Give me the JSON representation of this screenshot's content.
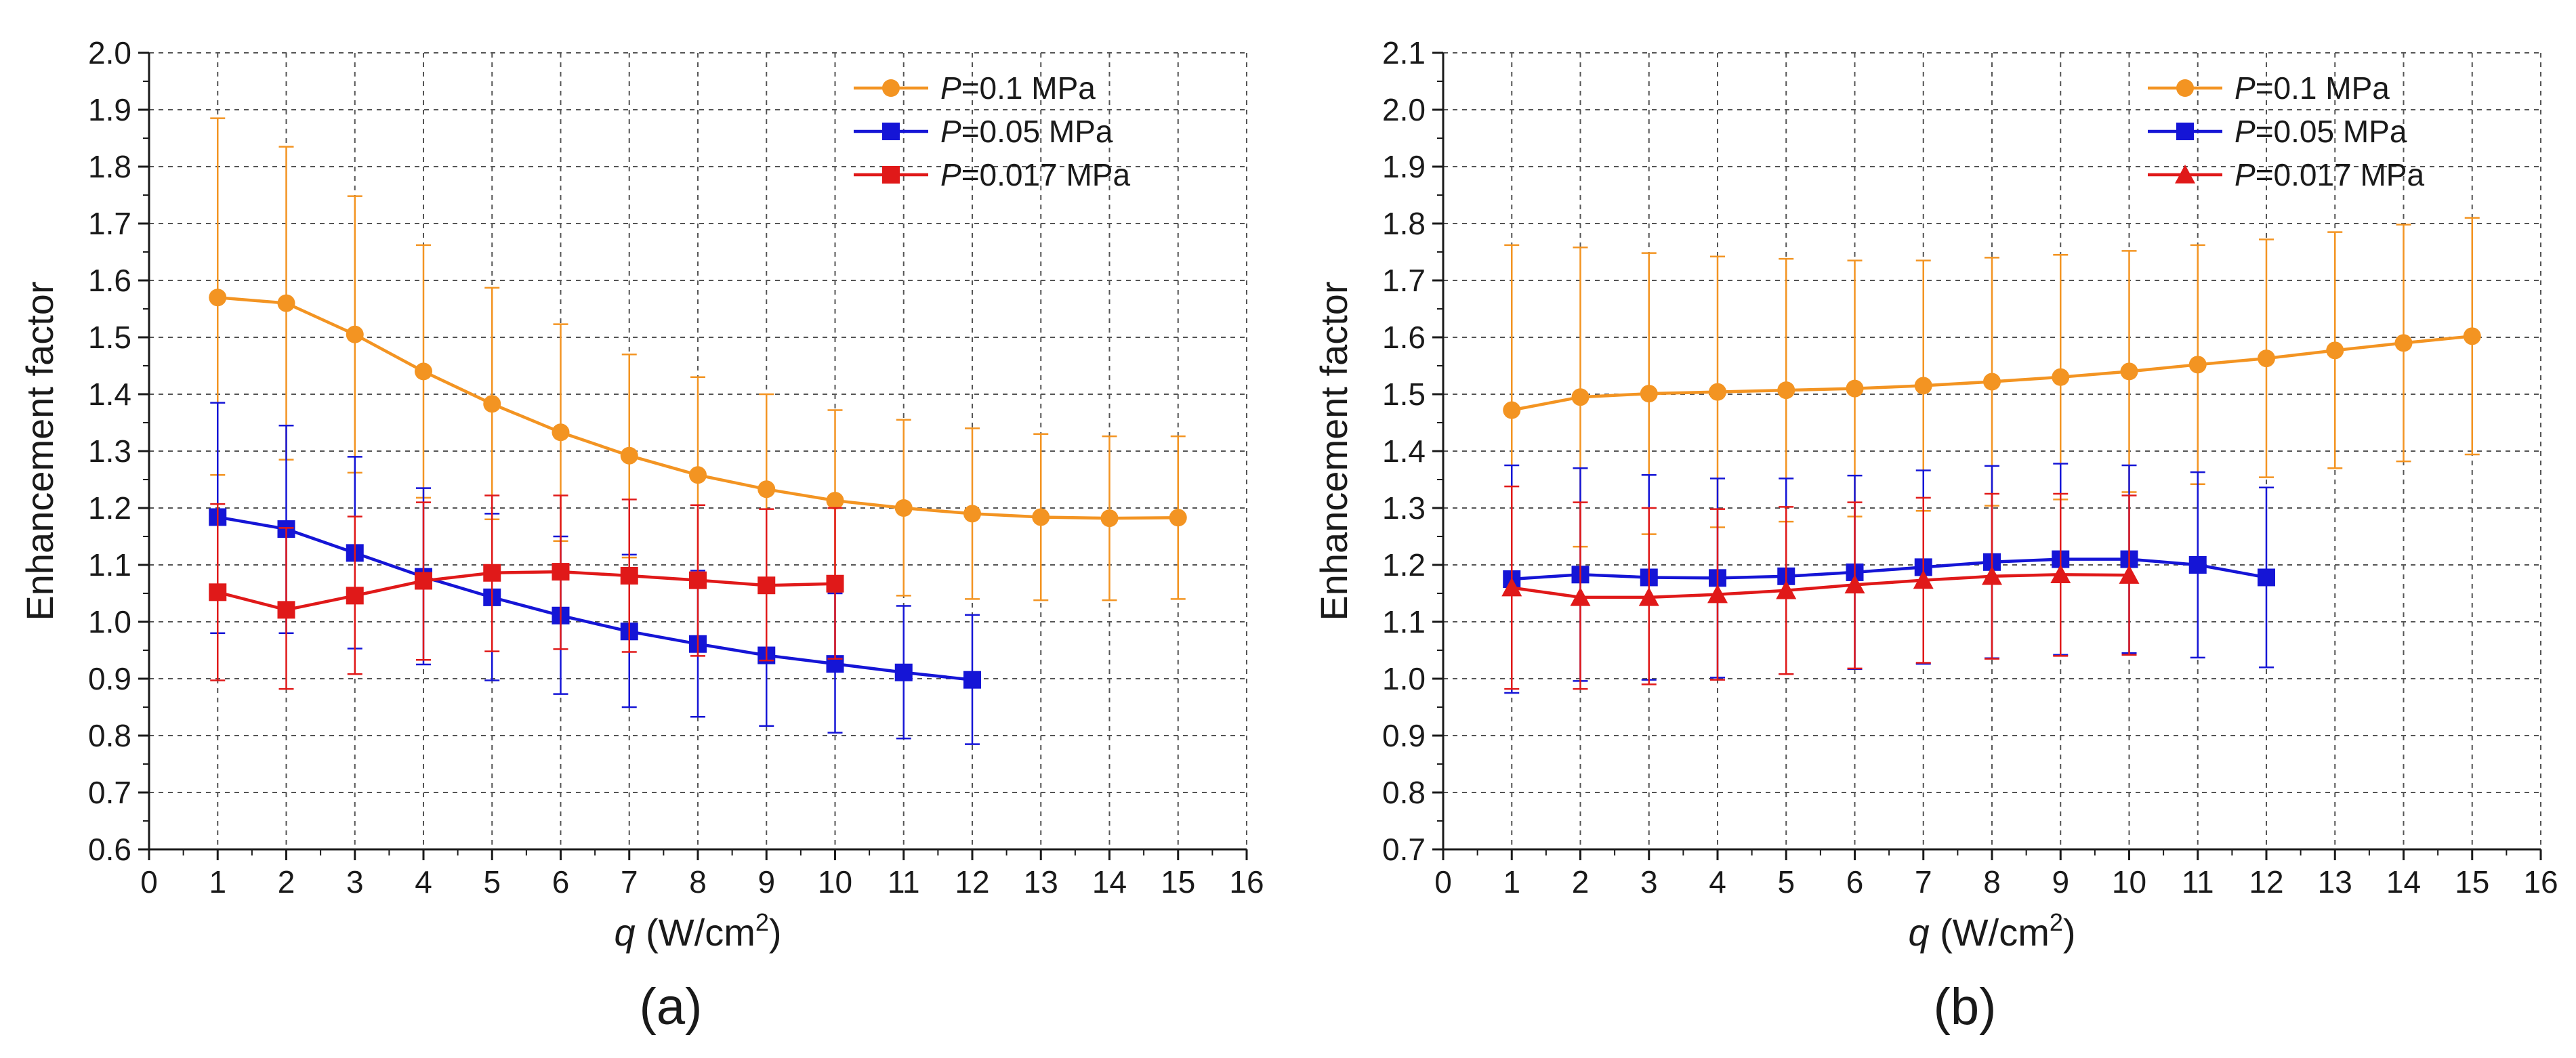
{
  "chart_data": [
    {
      "type": "line",
      "panel_label": "(a)",
      "title": "",
      "xlabel": {
        "italic": "q",
        "rest": " (W/cm",
        "sup": "2",
        "close": ")"
      },
      "ylabel": "Enhancement factor",
      "xlim": [
        0,
        16
      ],
      "ylim": [
        0.6,
        2.0
      ],
      "x_ticks": [
        0,
        1,
        2,
        3,
        4,
        5,
        6,
        7,
        8,
        9,
        10,
        11,
        12,
        13,
        14,
        15,
        16
      ],
      "y_ticks": [
        "0.6",
        "0.7",
        "0.8",
        "0.9",
        "1.0",
        "1.1",
        "1.2",
        "1.3",
        "1.4",
        "1.5",
        "1.6",
        "1.7",
        "1.8",
        "1.9",
        "2.0"
      ],
      "grid": true,
      "legend_position": "top-right",
      "series": [
        {
          "name": "P=0.1 MPa",
          "legend_italic": "P",
          "legend_rest": "=0.1 MPa",
          "color": "#f39422",
          "marker": "circle",
          "x": [
            1,
            2,
            3,
            4,
            5,
            6,
            7,
            8,
            9,
            10,
            11,
            12,
            13,
            14,
            15
          ],
          "y": [
            1.57,
            1.56,
            1.505,
            1.44,
            1.383,
            1.333,
            1.292,
            1.258,
            1.233,
            1.213,
            1.2,
            1.19,
            1.184,
            1.182,
            1.183
          ],
          "err_upper": [
            1.885,
            1.835,
            1.748,
            1.662,
            1.587,
            1.523,
            1.47,
            1.43,
            1.4,
            1.372,
            1.355,
            1.34,
            1.33,
            1.326,
            1.326
          ],
          "err_lower": [
            1.258,
            1.285,
            1.262,
            1.218,
            1.18,
            1.142,
            1.113,
            1.085,
            1.066,
            1.052,
            1.046,
            1.04,
            1.038,
            1.038,
            1.04
          ]
        },
        {
          "name": "P=0.05 MPa",
          "legend_italic": "P",
          "legend_rest": "=0.05 MPa",
          "color": "#1515d6",
          "marker": "square",
          "x": [
            1,
            2,
            3,
            4,
            5,
            6,
            7,
            8,
            9,
            10,
            11,
            12
          ],
          "y": [
            1.184,
            1.163,
            1.121,
            1.079,
            1.043,
            1.011,
            0.983,
            0.961,
            0.941,
            0.926,
            0.911,
            0.898
          ],
          "err_upper": [
            1.385,
            1.345,
            1.29,
            1.235,
            1.19,
            1.15,
            1.118,
            1.09,
            1.068,
            1.05,
            1.028,
            1.012
          ],
          "err_lower": [
            0.98,
            0.98,
            0.953,
            0.925,
            0.897,
            0.873,
            0.85,
            0.833,
            0.817,
            0.805,
            0.795,
            0.785
          ]
        },
        {
          "name": "P=0.017 MPa",
          "legend_italic": "P",
          "legend_rest": "=0.017 MPa",
          "color": "#e01919",
          "marker": "square",
          "x": [
            1,
            2,
            3,
            4,
            5,
            6,
            7,
            8,
            9,
            10
          ],
          "y": [
            1.052,
            1.021,
            1.046,
            1.072,
            1.086,
            1.088,
            1.081,
            1.073,
            1.064,
            1.067
          ],
          "err_upper": [
            1.207,
            1.165,
            1.185,
            1.21,
            1.222,
            1.222,
            1.215,
            1.205,
            1.198,
            1.2
          ],
          "err_lower": [
            0.897,
            0.882,
            0.908,
            0.933,
            0.948,
            0.952,
            0.947,
            0.94,
            0.932,
            0.935
          ]
        }
      ]
    },
    {
      "type": "line",
      "panel_label": "(b)",
      "title": "",
      "xlabel": {
        "italic": "q",
        "rest": " (W/cm",
        "sup": "2",
        "close": ")"
      },
      "ylabel": "Enhancement factor",
      "xlim": [
        0,
        16
      ],
      "ylim": [
        0.7,
        2.1
      ],
      "x_ticks": [
        0,
        1,
        2,
        3,
        4,
        5,
        6,
        7,
        8,
        9,
        10,
        11,
        12,
        13,
        14,
        15,
        16
      ],
      "y_ticks": [
        "0.7",
        "0.8",
        "0.9",
        "1.0",
        "1.1",
        "1.2",
        "1.3",
        "1.4",
        "1.5",
        "1.6",
        "1.7",
        "1.8",
        "1.9",
        "2.0",
        "2.1"
      ],
      "grid": true,
      "legend_position": "top-right",
      "series": [
        {
          "name": "P=0.1 MPa",
          "legend_italic": "P",
          "legend_rest": "=0.1 MPa",
          "color": "#f39422",
          "marker": "circle",
          "x": [
            1,
            2,
            3,
            4,
            5,
            6,
            7,
            8,
            9,
            10,
            11,
            12,
            13,
            14,
            15
          ],
          "y": [
            1.472,
            1.495,
            1.501,
            1.504,
            1.507,
            1.51,
            1.515,
            1.522,
            1.53,
            1.54,
            1.552,
            1.563,
            1.577,
            1.59,
            1.602
          ],
          "err_upper": [
            1.762,
            1.758,
            1.748,
            1.742,
            1.738,
            1.735,
            1.735,
            1.74,
            1.745,
            1.752,
            1.762,
            1.772,
            1.785,
            1.798,
            1.81
          ],
          "err_lower": [
            1.182,
            1.232,
            1.254,
            1.266,
            1.276,
            1.285,
            1.295,
            1.304,
            1.315,
            1.328,
            1.342,
            1.354,
            1.37,
            1.382,
            1.394
          ]
        },
        {
          "name": "P=0.05 MPa",
          "legend_italic": "P",
          "legend_rest": "=0.05 MPa",
          "color": "#1515d6",
          "marker": "square",
          "x": [
            1,
            2,
            3,
            4,
            5,
            6,
            7,
            8,
            9,
            10,
            11,
            12
          ],
          "y": [
            1.175,
            1.183,
            1.178,
            1.177,
            1.18,
            1.187,
            1.196,
            1.205,
            1.21,
            1.21,
            1.2,
            1.178
          ],
          "err_upper": [
            1.375,
            1.37,
            1.358,
            1.352,
            1.352,
            1.357,
            1.366,
            1.374,
            1.378,
            1.375,
            1.363,
            1.336
          ],
          "err_lower": [
            0.975,
            0.996,
            0.998,
            1.002,
            1.008,
            1.017,
            1.026,
            1.036,
            1.042,
            1.045,
            1.037,
            1.02
          ]
        },
        {
          "name": "P=0.017 MPa",
          "legend_italic": "P",
          "legend_rest": "=0.017 MPa",
          "color": "#e01919",
          "marker": "triangle",
          "x": [
            1,
            2,
            3,
            4,
            5,
            6,
            7,
            8,
            9,
            10
          ],
          "y": [
            1.16,
            1.143,
            1.143,
            1.148,
            1.155,
            1.165,
            1.173,
            1.18,
            1.183,
            1.182
          ],
          "err_upper": [
            1.338,
            1.31,
            1.3,
            1.298,
            1.302,
            1.31,
            1.318,
            1.325,
            1.325,
            1.322
          ],
          "err_lower": [
            0.982,
            0.982,
            0.99,
            0.998,
            1.008,
            1.018,
            1.028,
            1.035,
            1.04,
            1.042
          ]
        }
      ]
    }
  ]
}
